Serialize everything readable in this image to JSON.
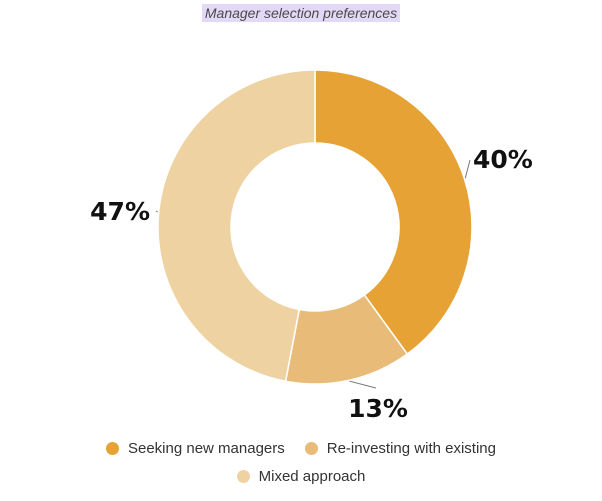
{
  "chart_data": {
    "type": "pie",
    "title": "Manager selection preferences",
    "donut": true,
    "categories": [
      "Seeking new managers",
      "Re-investing with existing",
      "Mixed approach"
    ],
    "values": [
      40,
      13,
      47
    ],
    "labels": [
      "40%",
      "13%",
      "47%"
    ],
    "colors": [
      "#e6a234",
      "#e8bc78",
      "#eed2a2"
    ],
    "legend_placement": "bottom"
  }
}
